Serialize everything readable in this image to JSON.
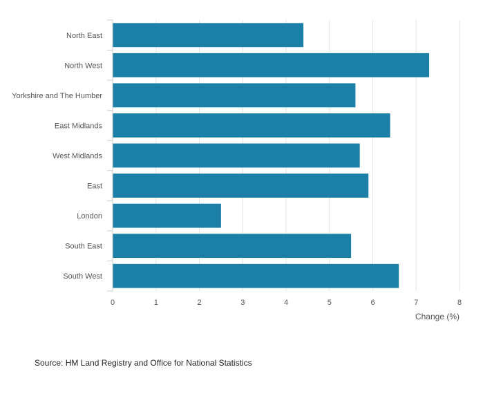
{
  "chart_data": {
    "type": "bar",
    "orientation": "horizontal",
    "title": "",
    "xlabel": "Change (%)",
    "ylabel": "",
    "categories": [
      "North East",
      "North West",
      "Yorkshire and The Humber",
      "East Midlands",
      "West Midlands",
      "East",
      "London",
      "South East",
      "South West"
    ],
    "values": [
      4.4,
      7.3,
      5.6,
      6.4,
      5.7,
      5.9,
      2.5,
      5.5,
      6.6
    ],
    "xlim": [
      0,
      8
    ],
    "xticks": [
      "0",
      "1",
      "2",
      "3",
      "4",
      "5",
      "6",
      "7",
      "8"
    ],
    "grid": true,
    "legend": "none",
    "bar_color": "#1b7fa8"
  },
  "source": "Source: HM Land Registry and Office for National Statistics"
}
